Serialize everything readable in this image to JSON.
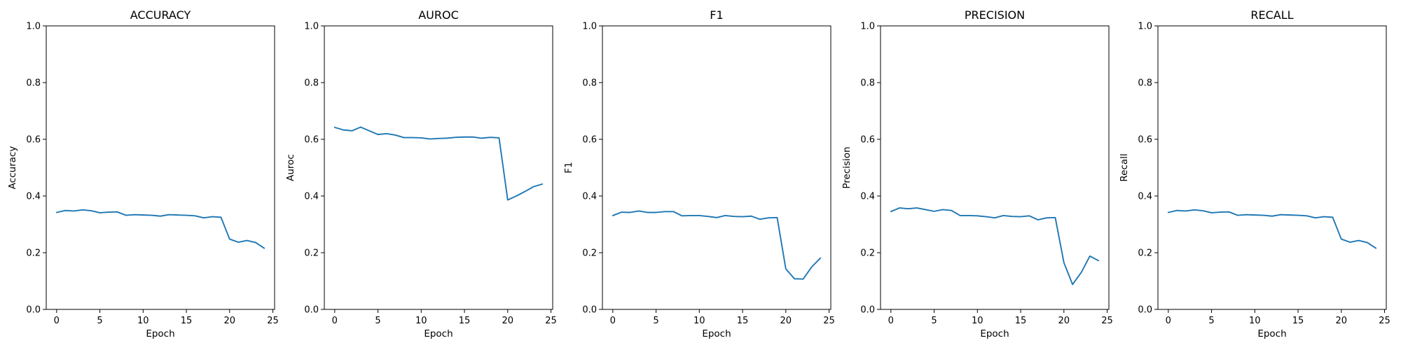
{
  "colors": {
    "series": "#1f77b4",
    "axes": "#000000",
    "background": "#ffffff"
  },
  "chart_data": [
    {
      "type": "line",
      "title": "ACCURACY",
      "xlabel": "Epoch",
      "ylabel": "Accuracy",
      "xlim": [
        -1.2,
        25.2
      ],
      "ylim": [
        0.0,
        1.0
      ],
      "xticks": [
        0,
        5,
        10,
        15,
        20,
        25
      ],
      "yticks": [
        0.0,
        0.2,
        0.4,
        0.6,
        0.8,
        1.0
      ],
      "grid": false,
      "x": [
        0,
        1,
        2,
        3,
        4,
        5,
        6,
        7,
        8,
        9,
        10,
        11,
        12,
        13,
        14,
        15,
        16,
        17,
        18,
        19,
        20,
        21,
        22,
        23,
        24
      ],
      "y": [
        0.342,
        0.349,
        0.347,
        0.351,
        0.348,
        0.341,
        0.343,
        0.344,
        0.332,
        0.334,
        0.333,
        0.332,
        0.329,
        0.334,
        0.333,
        0.332,
        0.33,
        0.323,
        0.327,
        0.325,
        0.248,
        0.237,
        0.243,
        0.236,
        0.216
      ]
    },
    {
      "type": "line",
      "title": "AUROC",
      "xlabel": "Epoch",
      "ylabel": "Auroc",
      "xlim": [
        -1.2,
        25.2
      ],
      "ylim": [
        0.0,
        1.0
      ],
      "xticks": [
        0,
        5,
        10,
        15,
        20,
        25
      ],
      "yticks": [
        0.0,
        0.2,
        0.4,
        0.6,
        0.8,
        1.0
      ],
      "grid": false,
      "x": [
        0,
        1,
        2,
        3,
        4,
        5,
        6,
        7,
        8,
        9,
        10,
        11,
        12,
        13,
        14,
        15,
        16,
        17,
        18,
        19,
        20,
        21,
        22,
        23,
        24
      ],
      "y": [
        0.642,
        0.633,
        0.63,
        0.643,
        0.63,
        0.617,
        0.62,
        0.615,
        0.606,
        0.606,
        0.605,
        0.601,
        0.603,
        0.604,
        0.607,
        0.608,
        0.608,
        0.604,
        0.607,
        0.605,
        0.386,
        0.4,
        0.416,
        0.433,
        0.442
      ]
    },
    {
      "type": "line",
      "title": "F1",
      "xlabel": "Epoch",
      "ylabel": "F1",
      "xlim": [
        -1.2,
        25.2
      ],
      "ylim": [
        0.0,
        1.0
      ],
      "xticks": [
        0,
        5,
        10,
        15,
        20,
        25
      ],
      "yticks": [
        0.0,
        0.2,
        0.4,
        0.6,
        0.8,
        1.0
      ],
      "grid": false,
      "x": [
        0,
        1,
        2,
        3,
        4,
        5,
        6,
        7,
        8,
        9,
        10,
        11,
        12,
        13,
        14,
        15,
        16,
        17,
        18,
        19,
        20,
        21,
        22,
        23,
        24
      ],
      "y": [
        0.331,
        0.343,
        0.342,
        0.347,
        0.342,
        0.342,
        0.345,
        0.345,
        0.33,
        0.331,
        0.331,
        0.328,
        0.324,
        0.331,
        0.328,
        0.327,
        0.329,
        0.318,
        0.323,
        0.324,
        0.143,
        0.108,
        0.107,
        0.15,
        0.181
      ]
    },
    {
      "type": "line",
      "title": "PRECISION",
      "xlabel": "Epoch",
      "ylabel": "Precision",
      "xlim": [
        -1.2,
        25.2
      ],
      "ylim": [
        0.0,
        1.0
      ],
      "xticks": [
        0,
        5,
        10,
        15,
        20,
        25
      ],
      "yticks": [
        0.0,
        0.2,
        0.4,
        0.6,
        0.8,
        1.0
      ],
      "grid": false,
      "x": [
        0,
        1,
        2,
        3,
        4,
        5,
        6,
        7,
        8,
        9,
        10,
        11,
        12,
        13,
        14,
        15,
        16,
        17,
        18,
        19,
        20,
        21,
        22,
        23,
        24
      ],
      "y": [
        0.345,
        0.358,
        0.355,
        0.358,
        0.352,
        0.346,
        0.352,
        0.349,
        0.331,
        0.331,
        0.33,
        0.327,
        0.323,
        0.331,
        0.328,
        0.327,
        0.33,
        0.316,
        0.323,
        0.324,
        0.165,
        0.088,
        0.13,
        0.188,
        0.172
      ]
    },
    {
      "type": "line",
      "title": "RECALL",
      "xlabel": "Epoch",
      "ylabel": "Recall",
      "xlim": [
        -1.2,
        25.2
      ],
      "ylim": [
        0.0,
        1.0
      ],
      "xticks": [
        0,
        5,
        10,
        15,
        20,
        25
      ],
      "yticks": [
        0.0,
        0.2,
        0.4,
        0.6,
        0.8,
        1.0
      ],
      "grid": false,
      "x": [
        0,
        1,
        2,
        3,
        4,
        5,
        6,
        7,
        8,
        9,
        10,
        11,
        12,
        13,
        14,
        15,
        16,
        17,
        18,
        19,
        20,
        21,
        22,
        23,
        24
      ],
      "y": [
        0.342,
        0.349,
        0.347,
        0.351,
        0.348,
        0.341,
        0.343,
        0.344,
        0.332,
        0.334,
        0.333,
        0.332,
        0.329,
        0.334,
        0.333,
        0.332,
        0.33,
        0.323,
        0.327,
        0.325,
        0.248,
        0.237,
        0.243,
        0.236,
        0.216
      ]
    }
  ]
}
